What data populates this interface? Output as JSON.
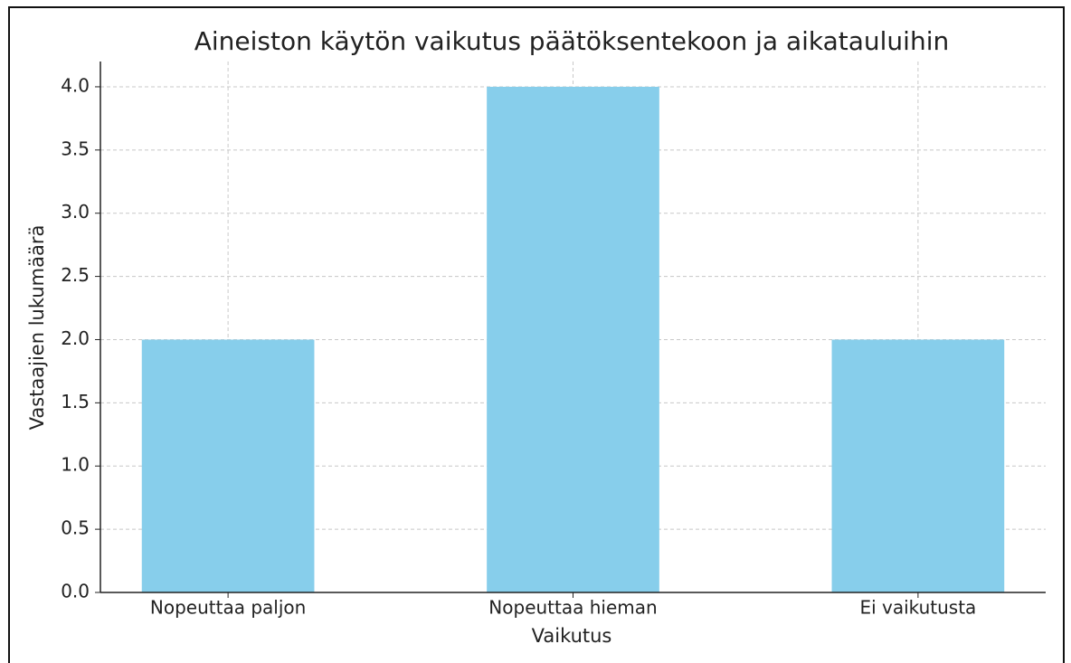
{
  "chart_data": {
    "type": "bar",
    "title": "Aineiston käytön vaikutus päätöksentekoon ja aikatauluihin",
    "x_label": "Vaikutus",
    "y_label": "Vastaajien lukumäärä",
    "categories": [
      "Nopeuttaa paljon",
      "Nopeuttaa hieman",
      "Ei vaikutusta"
    ],
    "values": [
      2,
      4,
      2
    ],
    "color": "#87ceeb",
    "ylim": [
      0,
      4.2
    ],
    "yticks": [
      {
        "value": 0,
        "label": "0.0"
      },
      0.5,
      {
        "value": 1,
        "label": "1.0"
      },
      1.5,
      {
        "value": 2,
        "label": "2.0"
      },
      2.5,
      {
        "value": 3,
        "label": "3.0"
      },
      3.5,
      {
        "value": 4,
        "label": "4.0"
      }
    ],
    "grid": true
  }
}
